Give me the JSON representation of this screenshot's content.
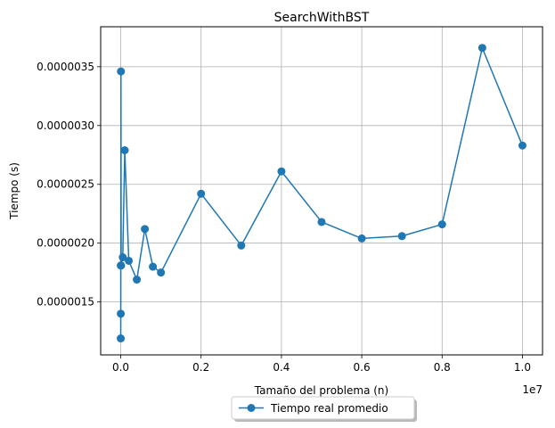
{
  "chart_data": {
    "type": "line",
    "title": "SearchWithBST",
    "xlabel": "Tamaño del problema (n)",
    "ylabel": "Tiempo (s)",
    "x_offset_label": "1e7",
    "xlim": [
      -500000,
      10500000
    ],
    "ylim": [
      1.05e-06,
      3.84e-06
    ],
    "x_tick_labels": [
      "0.0",
      "0.2",
      "0.4",
      "0.6",
      "0.8",
      "1.0"
    ],
    "x_tick_values": [
      0,
      2000000,
      4000000,
      6000000,
      8000000,
      10000000
    ],
    "y_tick_labels": [
      "0.0000015",
      "0.0000020",
      "0.0000025",
      "0.0000030",
      "0.0000035"
    ],
    "y_tick_values": [
      1.5e-06,
      2e-06,
      2.5e-06,
      3e-06,
      3.5e-06
    ],
    "grid": true,
    "legend_position": "bottom-center, below axes",
    "series": [
      {
        "name": "Tiempo real promedio",
        "color": "#1f77b4",
        "marker": "circle",
        "x": [
          10,
          100,
          1000,
          5000,
          10000,
          50000,
          100000,
          200000,
          400000,
          600000,
          800000,
          1000000,
          2000000,
          3000000,
          4000000,
          5000000,
          6000000,
          7000000,
          8000000,
          9000000,
          10000000
        ],
        "y": [
          1.81e-06,
          1.19e-06,
          1.4e-06,
          3.46e-06,
          1.81e-06,
          1.88e-06,
          2.79e-06,
          1.85e-06,
          1.69e-06,
          2.12e-06,
          1.8e-06,
          1.75e-06,
          2.42e-06,
          1.98e-06,
          2.61e-06,
          2.18e-06,
          2.04e-06,
          2.06e-06,
          2.16e-06,
          3.66e-06,
          2.83e-06
        ]
      }
    ]
  }
}
